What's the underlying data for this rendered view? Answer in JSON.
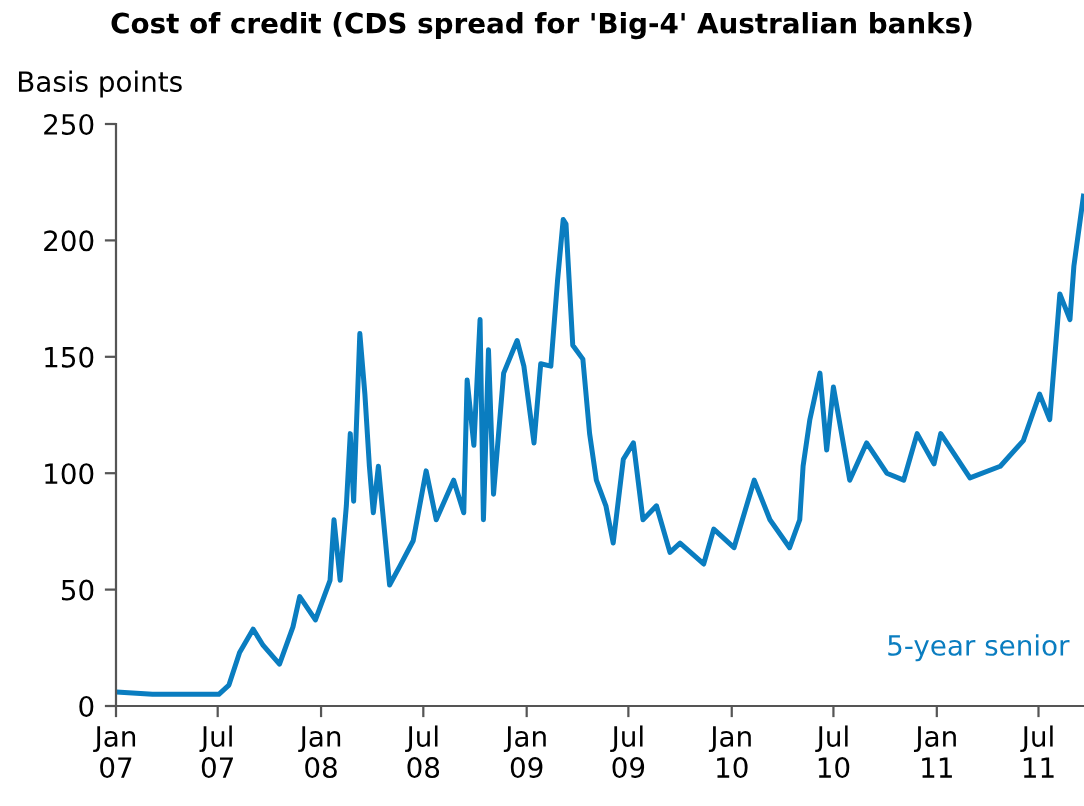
{
  "chart_data": {
    "type": "line",
    "title": "Cost of credit (CDS spread for 'Big-4' Australian banks)",
    "ylabel": "Basis points",
    "x": [
      "2007-01-02",
      "2007-03-07",
      "2007-07-03",
      "2007-07-21",
      "2007-08-09",
      "2007-09-02",
      "2007-09-20",
      "2007-10-19",
      "2007-11-12",
      "2007-11-24",
      "2007-12-22",
      "2008-01-17",
      "2008-01-24",
      "2008-02-04",
      "2008-02-15",
      "2008-02-22",
      "2008-02-28",
      "2008-03-10",
      "2008-03-19",
      "2008-03-27",
      "2008-04-03",
      "2008-04-12",
      "2008-05-02",
      "2008-05-20",
      "2008-06-13",
      "2008-07-06",
      "2008-07-24",
      "2008-08-24",
      "2008-09-11",
      "2008-09-17",
      "2008-09-29",
      "2008-10-10",
      "2008-10-16",
      "2008-10-25",
      "2008-11-03",
      "2008-11-21",
      "2008-12-15",
      "2008-12-27",
      "2009-01-14",
      "2009-01-26",
      "2009-02-13",
      "2009-02-25",
      "2009-03-07",
      "2009-03-12",
      "2009-03-24",
      "2009-04-11",
      "2009-04-23",
      "2009-05-05",
      "2009-05-22",
      "2009-06-04",
      "2009-06-22",
      "2009-07-10",
      "2009-07-27",
      "2009-08-20",
      "2009-09-13",
      "2009-10-01",
      "2009-11-12",
      "2009-11-30",
      "2010-01-05",
      "2010-02-10",
      "2010-03-10",
      "2010-04-14",
      "2010-05-02",
      "2010-05-08",
      "2010-05-20",
      "2010-06-07",
      "2010-06-19",
      "2010-07-01",
      "2010-07-30",
      "2010-08-29",
      "2010-10-04",
      "2010-11-03",
      "2010-11-27",
      "2010-12-27",
      "2011-01-08",
      "2011-03-01",
      "2011-04-24",
      "2011-06-04",
      "2011-07-03",
      "2011-07-21",
      "2011-08-08",
      "2011-08-26",
      "2011-09-02",
      "2011-09-19"
    ],
    "series": [
      {
        "name": "5-year senior",
        "color": "#0a7dc0",
        "values": [
          6,
          5,
          5,
          9,
          23,
          33,
          26,
          18,
          34,
          47,
          37,
          54,
          80,
          54,
          86,
          117,
          88,
          160,
          134,
          103,
          83,
          103,
          52,
          60,
          71,
          101,
          80,
          97,
          83,
          140,
          112,
          166,
          80,
          153,
          91,
          143,
          157,
          146,
          113,
          147,
          146,
          183,
          209,
          207,
          155,
          149,
          117,
          97,
          86,
          70,
          106,
          113,
          80,
          86,
          66,
          70,
          61,
          76,
          68,
          97,
          80,
          68,
          80,
          103,
          123,
          143,
          110,
          137,
          97,
          113,
          100,
          97,
          117,
          104,
          117,
          98,
          103,
          114,
          134,
          123,
          177,
          166,
          189,
          219
        ]
      }
    ],
    "xlim": [
      "2007-01-01",
      "2011-09-20"
    ],
    "xticks": [
      {
        "value": "2007-01-01",
        "label": "Jan\n07"
      },
      {
        "value": "2007-07-01",
        "label": "Jul\n07"
      },
      {
        "value": "2008-01-01",
        "label": "Jan\n08"
      },
      {
        "value": "2008-07-01",
        "label": "Jul\n08"
      },
      {
        "value": "2009-01-01",
        "label": "Jan\n09"
      },
      {
        "value": "2009-07-01",
        "label": "Jul\n09"
      },
      {
        "value": "2010-01-01",
        "label": "Jan\n10"
      },
      {
        "value": "2010-07-01",
        "label": "Jul\n10"
      },
      {
        "value": "2011-01-01",
        "label": "Jan\n11"
      },
      {
        "value": "2011-07-01",
        "label": "Jul\n11"
      }
    ],
    "ylim": [
      0,
      250
    ],
    "yticks": [
      0,
      50,
      100,
      150,
      200,
      250
    ],
    "grid": false,
    "legend": false,
    "marker": "none",
    "line_style": "solid"
  }
}
